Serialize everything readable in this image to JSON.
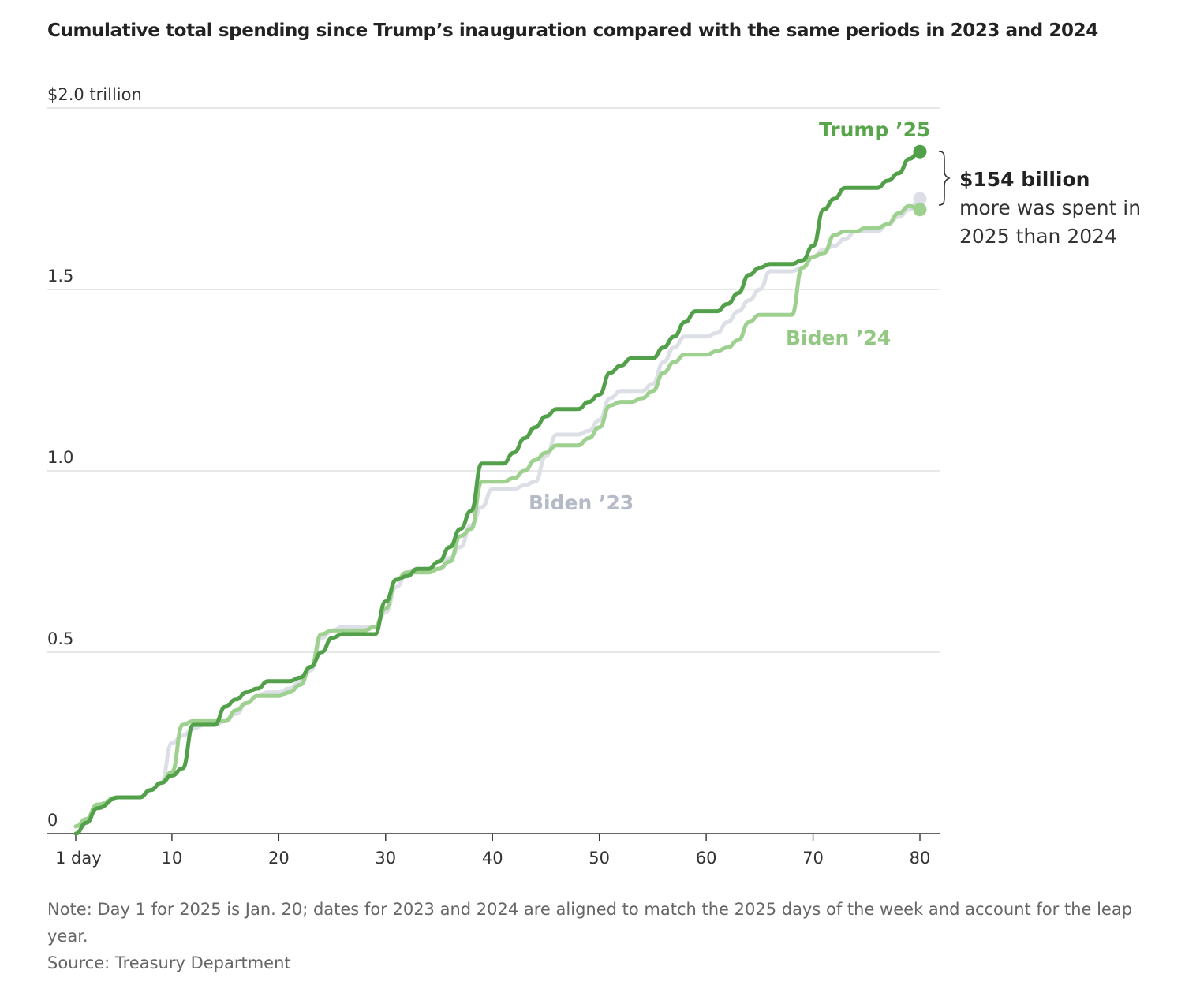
{
  "chart_data": {
    "type": "line",
    "title": "Cumulative total spending since Trump’s inauguration compared with the same periods in 2023 and 2024",
    "xlabel": "",
    "ylabel": "",
    "x_tick_labels": [
      "1 day",
      "10",
      "20",
      "30",
      "40",
      "50",
      "60",
      "70",
      "80"
    ],
    "x_ticks": [
      1,
      10,
      20,
      30,
      40,
      50,
      60,
      70,
      80
    ],
    "xlim": [
      1,
      80
    ],
    "y_tick_labels": [
      "$2.0 trillion",
      "1.5",
      "1.0",
      "0.5",
      "0"
    ],
    "y_ticks": [
      2.0,
      1.5,
      1.0,
      0.5,
      0
    ],
    "ylim": [
      0,
      2.0
    ],
    "grid": true,
    "series": [
      {
        "name": "Biden ’23",
        "color": "#dcdfe6",
        "label_color": "#b5bac7",
        "x": [
          1,
          2,
          3,
          5,
          7,
          8,
          9,
          10,
          11,
          12,
          13,
          14,
          15,
          16,
          17,
          18,
          19,
          20,
          21,
          22,
          23,
          24,
          25,
          26,
          27,
          28,
          29,
          30,
          31,
          32,
          33,
          34,
          35,
          36,
          37,
          38,
          39,
          40,
          41,
          42,
          43,
          44,
          45,
          46,
          47,
          48,
          49,
          50,
          51,
          52,
          53,
          54,
          55,
          56,
          57,
          58,
          59,
          60,
          61,
          62,
          63,
          64,
          65,
          66,
          67,
          68,
          69,
          70,
          71,
          72,
          73,
          74,
          75,
          76,
          77,
          78,
          79,
          80
        ],
        "values": [
          0.02,
          0.04,
          0.08,
          0.1,
          0.1,
          0.12,
          0.14,
          0.25,
          0.27,
          0.29,
          0.3,
          0.3,
          0.31,
          0.33,
          0.36,
          0.38,
          0.39,
          0.39,
          0.4,
          0.42,
          0.45,
          0.54,
          0.56,
          0.57,
          0.57,
          0.57,
          0.57,
          0.61,
          0.68,
          0.72,
          0.73,
          0.73,
          0.73,
          0.76,
          0.79,
          0.85,
          0.9,
          0.95,
          0.95,
          0.95,
          0.96,
          0.97,
          1.04,
          1.1,
          1.1,
          1.1,
          1.11,
          1.14,
          1.2,
          1.22,
          1.22,
          1.22,
          1.24,
          1.3,
          1.34,
          1.37,
          1.37,
          1.37,
          1.38,
          1.41,
          1.44,
          1.47,
          1.5,
          1.55,
          1.55,
          1.55,
          1.56,
          1.59,
          1.61,
          1.62,
          1.64,
          1.66,
          1.66,
          1.66,
          1.68,
          1.7,
          1.72,
          1.75
        ]
      },
      {
        "name": "Biden ’24",
        "color": "#9ed08f",
        "label_color": "#92c883",
        "x": [
          1,
          2,
          3,
          5,
          7,
          8,
          9,
          10,
          11,
          12,
          13,
          14,
          15,
          16,
          17,
          18,
          19,
          20,
          21,
          22,
          23,
          24,
          25,
          26,
          27,
          28,
          29,
          30,
          31,
          32,
          33,
          34,
          35,
          36,
          37,
          38,
          39,
          40,
          41,
          42,
          43,
          44,
          45,
          46,
          47,
          48,
          49,
          50,
          51,
          52,
          53,
          54,
          55,
          56,
          57,
          58,
          59,
          60,
          61,
          62,
          63,
          64,
          65,
          66,
          67,
          68,
          69,
          70,
          71,
          72,
          73,
          74,
          75,
          76,
          77,
          78,
          79,
          80
        ],
        "values": [
          0.02,
          0.04,
          0.08,
          0.1,
          0.1,
          0.12,
          0.14,
          0.17,
          0.3,
          0.31,
          0.31,
          0.31,
          0.31,
          0.34,
          0.36,
          0.38,
          0.38,
          0.38,
          0.39,
          0.41,
          0.46,
          0.55,
          0.56,
          0.56,
          0.56,
          0.56,
          0.57,
          0.62,
          0.7,
          0.72,
          0.72,
          0.72,
          0.73,
          0.75,
          0.82,
          0.84,
          0.97,
          0.97,
          0.97,
          0.98,
          1.0,
          1.03,
          1.05,
          1.07,
          1.07,
          1.07,
          1.09,
          1.12,
          1.18,
          1.19,
          1.19,
          1.2,
          1.22,
          1.27,
          1.3,
          1.32,
          1.32,
          1.32,
          1.33,
          1.34,
          1.36,
          1.41,
          1.43,
          1.43,
          1.43,
          1.43,
          1.56,
          1.59,
          1.6,
          1.65,
          1.66,
          1.66,
          1.67,
          1.67,
          1.68,
          1.71,
          1.73,
          1.72
        ]
      },
      {
        "name": "Trump ’25",
        "color": "#53a04a",
        "label_color": "#58a54b",
        "x": [
          1,
          2,
          3,
          5,
          7,
          8,
          9,
          10,
          11,
          12,
          13,
          14,
          15,
          16,
          17,
          18,
          19,
          20,
          21,
          22,
          23,
          24,
          25,
          26,
          27,
          28,
          29,
          30,
          31,
          32,
          33,
          34,
          35,
          36,
          37,
          38,
          39,
          40,
          41,
          42,
          43,
          44,
          45,
          46,
          47,
          48,
          49,
          50,
          51,
          52,
          53,
          54,
          55,
          56,
          57,
          58,
          59,
          60,
          61,
          62,
          63,
          64,
          65,
          66,
          67,
          68,
          69,
          70,
          71,
          72,
          73,
          74,
          75,
          76,
          77,
          78,
          79,
          80
        ],
        "values": [
          0.0,
          0.03,
          0.07,
          0.1,
          0.1,
          0.12,
          0.14,
          0.16,
          0.18,
          0.3,
          0.3,
          0.3,
          0.35,
          0.37,
          0.39,
          0.4,
          0.42,
          0.42,
          0.42,
          0.43,
          0.46,
          0.5,
          0.54,
          0.55,
          0.55,
          0.55,
          0.55,
          0.64,
          0.7,
          0.71,
          0.73,
          0.73,
          0.75,
          0.79,
          0.84,
          0.89,
          1.02,
          1.02,
          1.02,
          1.05,
          1.09,
          1.12,
          1.15,
          1.17,
          1.17,
          1.17,
          1.19,
          1.21,
          1.27,
          1.29,
          1.31,
          1.31,
          1.31,
          1.34,
          1.37,
          1.41,
          1.44,
          1.44,
          1.44,
          1.46,
          1.49,
          1.54,
          1.56,
          1.57,
          1.57,
          1.57,
          1.58,
          1.62,
          1.72,
          1.75,
          1.78,
          1.78,
          1.78,
          1.78,
          1.8,
          1.82,
          1.86,
          1.88
        ]
      }
    ],
    "annotation": {
      "title": "$154 billion",
      "body": "more was spent in 2025 than 2024"
    },
    "legend": "inline labels"
  },
  "footnote": {
    "note": "Note: Day 1 for 2025 is Jan. 20; dates for 2023 and 2024 are aligned to match the 2025 days of the week and account for the leap year.",
    "source": "Source: Treasury Department"
  }
}
